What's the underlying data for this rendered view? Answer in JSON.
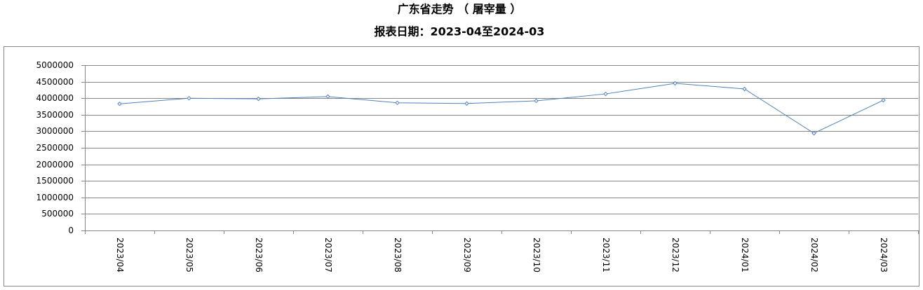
{
  "chart_data": {
    "type": "line",
    "title": "广东省走势 （ 屠宰量 ）",
    "subtitle": "报表日期：2023-04至2024-03",
    "categories": [
      "2023/04",
      "2023/05",
      "2023/06",
      "2023/07",
      "2023/08",
      "2023/09",
      "2023/10",
      "2023/11",
      "2023/12",
      "2024/01",
      "2024/02",
      "2024/03"
    ],
    "series": [
      {
        "name": "屠宰量",
        "color": "#4f81bd",
        "values": [
          3830000,
          4000000,
          3980000,
          4050000,
          3860000,
          3840000,
          3920000,
          4130000,
          4450000,
          4280000,
          2940000,
          3940000
        ]
      }
    ],
    "ylim": [
      0,
      5000000
    ],
    "yticks": [
      0,
      500000,
      1000000,
      1500000,
      2000000,
      2500000,
      3000000,
      3500000,
      4000000,
      4500000,
      5000000
    ],
    "grid": true
  }
}
